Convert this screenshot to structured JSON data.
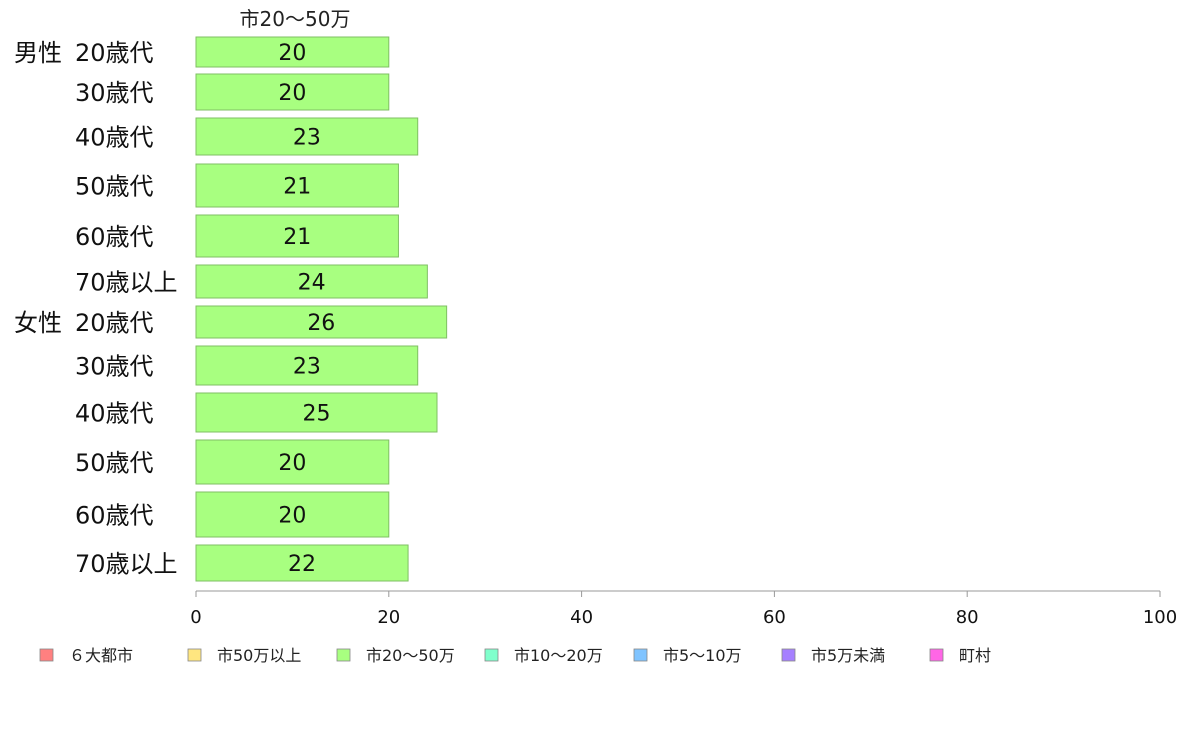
{
  "chart_data": {
    "type": "bar",
    "orientation": "horizontal",
    "series_title": "市20〜50万",
    "xlim": [
      0,
      100
    ],
    "x_ticks": [
      "0",
      "20",
      "40",
      "60",
      "80",
      "100"
    ],
    "bar_color": "#a8ff80",
    "groups": [
      {
        "gender": "男性",
        "rows": [
          {
            "age": "20歳代",
            "value": 20,
            "label": "20"
          },
          {
            "age": "30歳代",
            "value": 20,
            "label": "20"
          },
          {
            "age": "40歳代",
            "value": 23,
            "label": "23"
          },
          {
            "age": "50歳代",
            "value": 21,
            "label": "21"
          },
          {
            "age": "60歳代",
            "value": 21,
            "label": "21"
          },
          {
            "age": "70歳以上",
            "value": 24,
            "label": "24"
          }
        ]
      },
      {
        "gender": "女性",
        "rows": [
          {
            "age": "20歳代",
            "value": 26,
            "label": "26"
          },
          {
            "age": "30歳代",
            "value": 23,
            "label": "23"
          },
          {
            "age": "40歳代",
            "value": 25,
            "label": "25"
          },
          {
            "age": "50歳代",
            "value": 20,
            "label": "20"
          },
          {
            "age": "60歳代",
            "value": 20,
            "label": "20"
          },
          {
            "age": "70歳以上",
            "value": 22,
            "label": "22"
          }
        ]
      }
    ],
    "legend_placement": "bottom",
    "legend": [
      {
        "label": "６大都市",
        "color": "#ff8080"
      },
      {
        "label": "市50万以上",
        "color": "#ffe680"
      },
      {
        "label": "市20〜50万",
        "color": "#a8ff80"
      },
      {
        "label": "市10〜20万",
        "color": "#80ffcc"
      },
      {
        "label": "市5〜10万",
        "color": "#80c4ff"
      },
      {
        "label": "市5万未満",
        "color": "#a680ff"
      },
      {
        "label": "町村",
        "color": "#ff66e6"
      }
    ]
  }
}
